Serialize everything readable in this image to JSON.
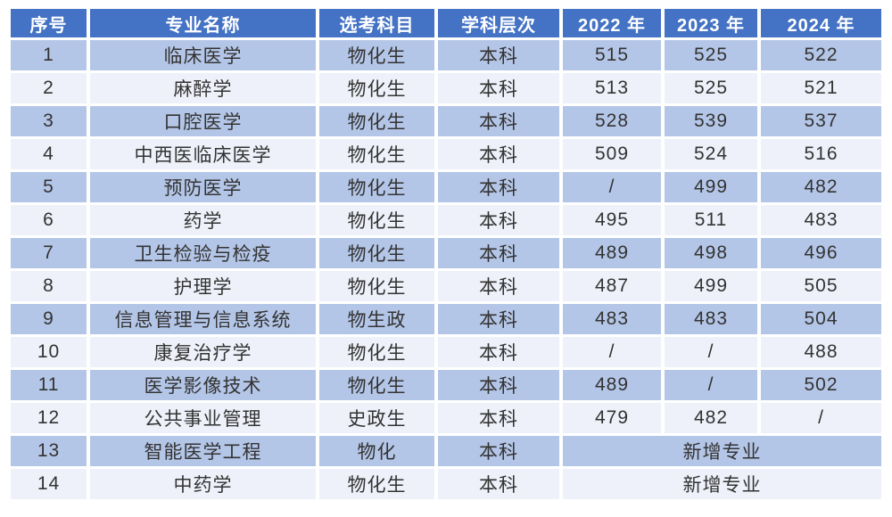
{
  "colors": {
    "header_bg": "#4472c4",
    "header_text": "#ffffff",
    "row_odd_bg": "#b4c6e7",
    "row_even_bg": "#eef1f9",
    "body_text": "#333333",
    "grid_gap": "#ffffff"
  },
  "chart_data": {
    "type": "table",
    "columns": [
      "序号",
      "专业名称",
      "选考科目",
      "学科层次",
      "2022 年",
      "2023 年",
      "2024 年"
    ],
    "rows": [
      [
        "1",
        "临床医学",
        "物化生",
        "本科",
        "515",
        "525",
        "522"
      ],
      [
        "2",
        "麻醉学",
        "物化生",
        "本科",
        "513",
        "525",
        "521"
      ],
      [
        "3",
        "口腔医学",
        "物化生",
        "本科",
        "528",
        "539",
        "537"
      ],
      [
        "4",
        "中西医临床医学",
        "物化生",
        "本科",
        "509",
        "524",
        "516"
      ],
      [
        "5",
        "预防医学",
        "物化生",
        "本科",
        "/",
        "499",
        "482"
      ],
      [
        "6",
        "药学",
        "物化生",
        "本科",
        "495",
        "511",
        "483"
      ],
      [
        "7",
        "卫生检验与检疫",
        "物化生",
        "本科",
        "489",
        "498",
        "496"
      ],
      [
        "8",
        "护理学",
        "物化生",
        "本科",
        "487",
        "499",
        "505"
      ],
      [
        "9",
        "信息管理与信息系统",
        "物生政",
        "本科",
        "483",
        "483",
        "504"
      ],
      [
        "10",
        "康复治疗学",
        "物化生",
        "本科",
        "/",
        "/",
        "488"
      ],
      [
        "11",
        "医学影像技术",
        "物化生",
        "本科",
        "489",
        "/",
        "502"
      ],
      [
        "12",
        "公共事业管理",
        "史政生",
        "本科",
        "479",
        "482",
        "/"
      ],
      [
        "13",
        "智能医学工程",
        "物化",
        "本科",
        "新增专业"
      ],
      [
        "14",
        "中药学",
        "物化生",
        "本科",
        "新增专业"
      ]
    ],
    "notes": "rows 13 and 14 have the year columns merged into one cell reading 新增专业"
  }
}
